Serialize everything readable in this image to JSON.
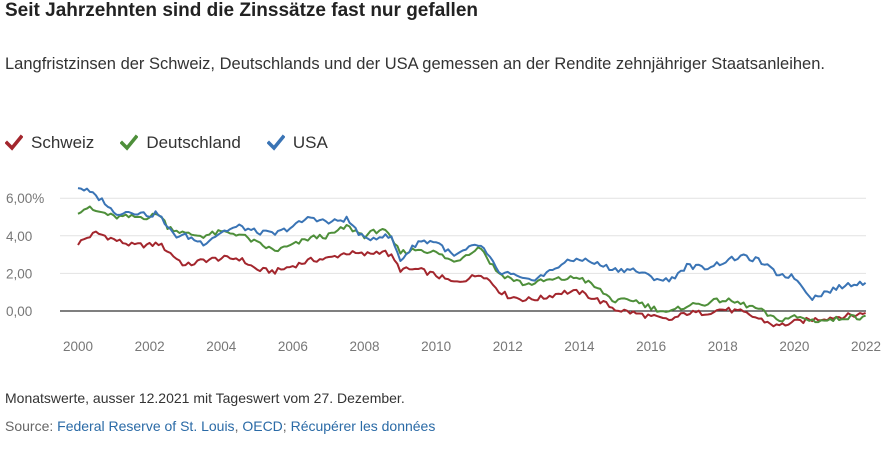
{
  "header": {
    "title": "Seit Jahrzehnten sind die Zinssätze fast nur gefallen",
    "subtitle": "Langfristzinsen der Schweiz, Deutschlands und der USA gemessen an der Rendite zehnjähriger Staatsanleihen."
  },
  "footer": {
    "note": "Monatswerte, ausser 12.2021 mit Tageswert vom 27. Dezember.",
    "source_prefix": "Source:",
    "source_link_1": "Federal Reserve of St. Louis",
    "source_sep_1": ",",
    "source_link_2": "OECD",
    "source_sep_2": ";",
    "source_link_3": "Récupérer les données"
  },
  "chart_data": {
    "type": "line",
    "title": "Seit Jahrzehnten sind die Zinssätze fast nur gefallen",
    "xlabel": "",
    "ylabel": "",
    "xlim": [
      2000,
      2022
    ],
    "ylim": [
      -1.5,
      7
    ],
    "grid": true,
    "legend_position": "top-left",
    "x_ticks": [
      2000,
      2002,
      2004,
      2006,
      2008,
      2010,
      2012,
      2014,
      2016,
      2018,
      2020,
      2022
    ],
    "x_tick_labels": [
      "2000",
      "2002",
      "2004",
      "2006",
      "2008",
      "2010",
      "2012",
      "2014",
      "2016",
      "2018",
      "2020",
      "2022"
    ],
    "y_ticks": [
      0,
      2,
      4,
      6
    ],
    "y_tick_labels": [
      "0,00",
      "2,00",
      "4,00",
      "6,00%"
    ],
    "series": [
      {
        "name": "Schweiz",
        "color": "#a3262d",
        "x": [
          2000.0,
          2000.25,
          2000.5,
          2000.75,
          2001.0,
          2001.5,
          2002.0,
          2002.25,
          2002.5,
          2002.75,
          2003.0,
          2003.5,
          2004.0,
          2004.5,
          2005.0,
          2005.5,
          2006.0,
          2006.5,
          2007.0,
          2007.5,
          2008.0,
          2008.5,
          2008.75,
          2009.0,
          2009.5,
          2010.0,
          2010.5,
          2011.0,
          2011.25,
          2011.5,
          2011.75,
          2012.0,
          2012.5,
          2013.0,
          2013.5,
          2014.0,
          2014.5,
          2015.0,
          2015.5,
          2016.0,
          2016.5,
          2017.0,
          2017.5,
          2018.0,
          2018.5,
          2019.0,
          2019.5,
          2020.0,
          2020.5,
          2021.0,
          2021.5,
          2021.75,
          2021.99
        ],
        "values": [
          3.6,
          3.9,
          4.15,
          4.0,
          3.8,
          3.5,
          3.5,
          3.6,
          3.2,
          2.8,
          2.4,
          2.7,
          2.8,
          2.8,
          2.2,
          2.1,
          2.4,
          2.7,
          2.8,
          3.1,
          3.0,
          3.2,
          2.9,
          2.2,
          2.2,
          1.9,
          1.5,
          1.8,
          2.0,
          1.6,
          1.1,
          0.8,
          0.6,
          0.7,
          1.0,
          1.0,
          0.6,
          0.1,
          -0.1,
          -0.3,
          -0.5,
          -0.1,
          -0.1,
          0.1,
          -0.05,
          -0.4,
          -0.8,
          -0.6,
          -0.45,
          -0.35,
          -0.25,
          -0.2,
          -0.1
        ]
      },
      {
        "name": "Deutschland",
        "color": "#4e8f3a",
        "x": [
          2000.0,
          2000.25,
          2000.5,
          2000.75,
          2001.0,
          2001.5,
          2002.0,
          2002.25,
          2002.5,
          2002.75,
          2003.0,
          2003.5,
          2004.0,
          2004.5,
          2005.0,
          2005.5,
          2006.0,
          2006.5,
          2007.0,
          2007.5,
          2008.0,
          2008.5,
          2008.75,
          2009.0,
          2009.5,
          2010.0,
          2010.5,
          2011.0,
          2011.25,
          2011.5,
          2011.75,
          2012.0,
          2012.5,
          2013.0,
          2013.5,
          2014.0,
          2014.5,
          2015.0,
          2015.5,
          2016.0,
          2016.5,
          2017.0,
          2017.5,
          2018.0,
          2018.5,
          2019.0,
          2019.5,
          2020.0,
          2020.5,
          2021.0,
          2021.5,
          2021.75,
          2021.99
        ],
        "values": [
          5.3,
          5.5,
          5.3,
          5.2,
          5.0,
          5.0,
          5.0,
          5.2,
          4.5,
          4.3,
          4.1,
          4.0,
          4.2,
          4.1,
          3.6,
          3.2,
          3.5,
          3.9,
          4.0,
          4.5,
          4.0,
          4.4,
          3.8,
          3.1,
          3.3,
          3.1,
          2.6,
          3.2,
          3.4,
          2.6,
          2.0,
          1.8,
          1.4,
          1.6,
          1.7,
          1.8,
          1.2,
          0.5,
          0.6,
          0.2,
          -0.1,
          0.3,
          0.4,
          0.6,
          0.4,
          0.1,
          -0.5,
          -0.3,
          -0.5,
          -0.5,
          -0.3,
          -0.35,
          -0.25
        ]
      },
      {
        "name": "USA",
        "color": "#3a74b5",
        "x": [
          2000.0,
          2000.25,
          2000.5,
          2000.75,
          2001.0,
          2001.5,
          2002.0,
          2002.25,
          2002.5,
          2002.75,
          2003.0,
          2003.5,
          2004.0,
          2004.5,
          2005.0,
          2005.5,
          2006.0,
          2006.5,
          2007.0,
          2007.5,
          2008.0,
          2008.5,
          2008.75,
          2009.0,
          2009.5,
          2010.0,
          2010.5,
          2011.0,
          2011.25,
          2011.5,
          2011.75,
          2012.0,
          2012.5,
          2013.0,
          2013.5,
          2014.0,
          2014.5,
          2015.0,
          2015.5,
          2016.0,
          2016.5,
          2017.0,
          2017.5,
          2018.0,
          2018.5,
          2019.0,
          2019.5,
          2020.0,
          2020.5,
          2021.0,
          2021.5,
          2021.75,
          2021.99
        ],
        "values": [
          6.6,
          6.4,
          6.1,
          5.8,
          5.2,
          5.3,
          5.1,
          5.2,
          4.4,
          4.0,
          4.0,
          3.6,
          4.2,
          4.5,
          4.2,
          4.1,
          4.5,
          5.0,
          4.7,
          4.9,
          3.8,
          4.0,
          3.9,
          2.7,
          3.7,
          3.7,
          2.9,
          3.4,
          3.5,
          2.8,
          2.0,
          2.0,
          1.6,
          1.9,
          2.5,
          2.8,
          2.5,
          2.2,
          2.2,
          1.8,
          1.6,
          2.4,
          2.3,
          2.6,
          2.9,
          2.7,
          2.0,
          1.8,
          0.7,
          1.1,
          1.4,
          1.5,
          1.5
        ]
      }
    ]
  }
}
